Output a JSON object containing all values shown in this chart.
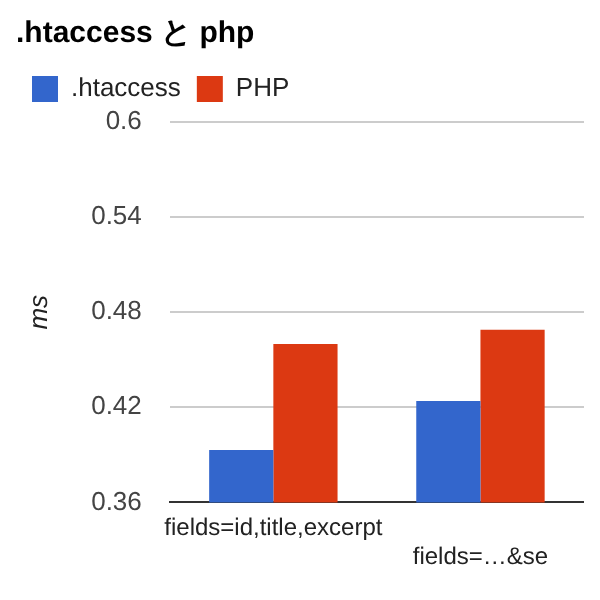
{
  "chart_data": {
    "type": "bar",
    "title": ".htaccess と php",
    "ylabel": "ms",
    "categories": [
      "fields=id,title,excerpt",
      "fields=…&se"
    ],
    "series": [
      {
        "name": ".htaccess",
        "color": "#3366cc",
        "values": [
          0.393,
          0.424
        ]
      },
      {
        "name": "PHP",
        "color": "#dc3912",
        "values": [
          0.46,
          0.469
        ]
      }
    ],
    "ylim": [
      0.36,
      0.6
    ],
    "yticks": [
      0.36,
      0.42,
      0.48,
      0.54,
      0.6
    ],
    "grid": "y",
    "legend": "top left"
  }
}
